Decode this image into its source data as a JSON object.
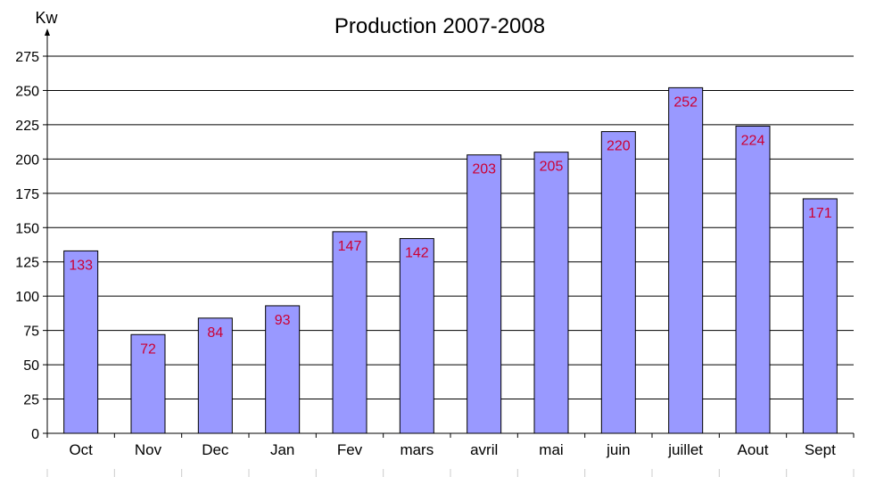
{
  "chart_data": {
    "type": "bar",
    "title": "Production 2007-2008",
    "ylabel": "Kw",
    "xlabel": "",
    "categories": [
      "Oct",
      "Nov",
      "Dec",
      "Jan",
      "Fev",
      "mars",
      "avril",
      "mai",
      "juin",
      "juillet",
      "Aout",
      "Sept"
    ],
    "values": [
      133,
      72,
      84,
      93,
      147,
      142,
      203,
      205,
      220,
      252,
      224,
      171
    ],
    "ylim": [
      0,
      275
    ],
    "yticks": [
      0,
      25,
      50,
      75,
      100,
      125,
      150,
      175,
      200,
      225,
      250,
      275
    ],
    "grid": true,
    "legend": "none",
    "colors": {
      "bar_fill": "#9999ff",
      "bar_stroke": "#000000",
      "data_label": "#cc0033"
    }
  }
}
